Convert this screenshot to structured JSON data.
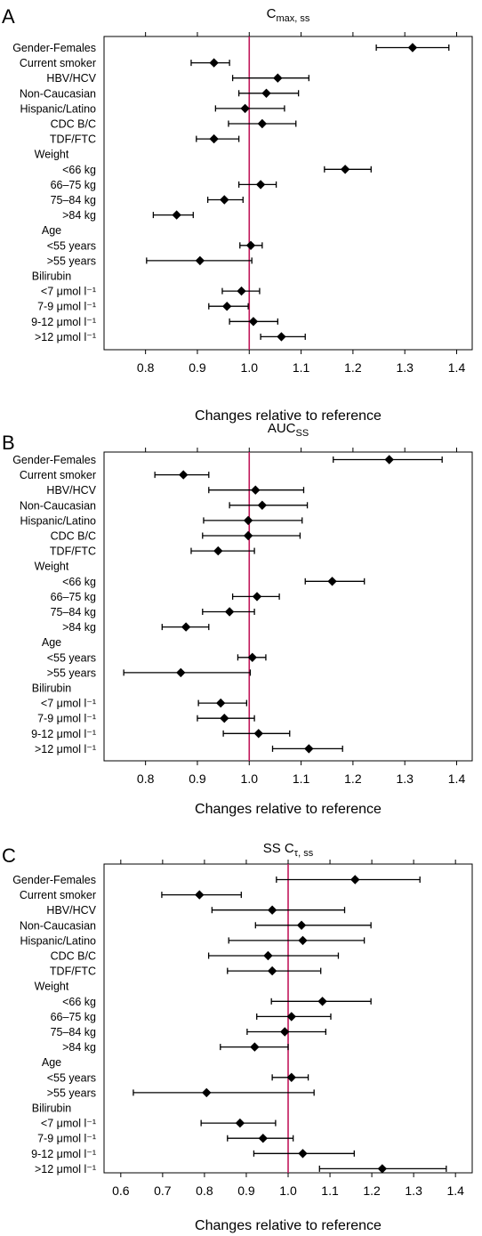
{
  "colors": {
    "reference_line": "#c2185b",
    "markers": "#000000"
  },
  "chart_data": [
    {
      "type": "forest",
      "panel": "A",
      "title_main": "C",
      "title_sub": "max, ss",
      "xlabel": "Changes relative to reference",
      "xlim": [
        0.72,
        1.43
      ],
      "xticks": [
        "0.8",
        "0.9",
        "1.0",
        "1.1",
        "1.2",
        "1.3",
        "1.4"
      ],
      "tick_values": [
        0.8,
        0.9,
        1.0,
        1.1,
        1.2,
        1.3,
        1.4
      ],
      "reference": 1.0,
      "rows": [
        {
          "label": "Gender-Females",
          "est": 1.315,
          "lo": 1.245,
          "hi": 1.385
        },
        {
          "label": "Current smoker",
          "est": 0.932,
          "lo": 0.888,
          "hi": 0.962
        },
        {
          "label": "HBV/HCV",
          "est": 1.055,
          "lo": 0.968,
          "hi": 1.115
        },
        {
          "label": "Non-Caucasian",
          "est": 1.033,
          "lo": 0.98,
          "hi": 1.095
        },
        {
          "label": "Hispanic/Latino",
          "est": 0.992,
          "lo": 0.935,
          "hi": 1.068
        },
        {
          "label": "CDC B/C",
          "est": 1.025,
          "lo": 0.96,
          "hi": 1.09
        },
        {
          "label": "TDF/FTC",
          "est": 0.932,
          "lo": 0.898,
          "hi": 0.98
        },
        {
          "label": "Weight"
        },
        {
          "label": "<66 kg",
          "est": 1.185,
          "lo": 1.145,
          "hi": 1.235
        },
        {
          "label": "66–75 kg",
          "est": 1.022,
          "lo": 0.98,
          "hi": 1.052
        },
        {
          "label": "75–84 kg",
          "est": 0.952,
          "lo": 0.92,
          "hi": 0.988
        },
        {
          "label": ">84 kg",
          "est": 0.86,
          "lo": 0.815,
          "hi": 0.892
        },
        {
          "label": "Age"
        },
        {
          "label": "<55 years",
          "est": 1.003,
          "lo": 0.982,
          "hi": 1.025
        },
        {
          "label": ">55 years",
          "est": 0.905,
          "lo": 0.802,
          "hi": 1.005
        },
        {
          "label": "Bilirubin"
        },
        {
          "label": "<7 μmol l⁻¹",
          "est": 0.985,
          "lo": 0.948,
          "hi": 1.02
        },
        {
          "label": "7-9 μmol l⁻¹",
          "est": 0.957,
          "lo": 0.922,
          "hi": 0.998
        },
        {
          "label": "9-12 μmol l⁻¹",
          "est": 1.008,
          "lo": 0.962,
          "hi": 1.055
        },
        {
          "label": ">12 μmol l⁻¹",
          "est": 1.062,
          "lo": 1.022,
          "hi": 1.108
        }
      ]
    },
    {
      "type": "forest",
      "panel": "B",
      "title_main": "AUC",
      "title_sub": "SS",
      "xlabel": "Changes relative to reference",
      "xlim": [
        0.72,
        1.43
      ],
      "xticks": [
        "0.8",
        "0.9",
        "1.0",
        "1.1",
        "1.2",
        "1.3",
        "1.4"
      ],
      "tick_values": [
        0.8,
        0.9,
        1.0,
        1.1,
        1.2,
        1.3,
        1.4
      ],
      "reference": 1.0,
      "rows": [
        {
          "label": "Gender-Females",
          "est": 1.27,
          "lo": 1.162,
          "hi": 1.372
        },
        {
          "label": "Current smoker",
          "est": 0.873,
          "lo": 0.818,
          "hi": 0.922
        },
        {
          "label": "HBV/HCV",
          "est": 1.012,
          "lo": 0.922,
          "hi": 1.105
        },
        {
          "label": "Non-Caucasian",
          "est": 1.025,
          "lo": 0.962,
          "hi": 1.112
        },
        {
          "label": "Hispanic/Latino",
          "est": 0.998,
          "lo": 0.912,
          "hi": 1.102
        },
        {
          "label": "CDC B/C",
          "est": 0.998,
          "lo": 0.91,
          "hi": 1.098
        },
        {
          "label": "TDF/FTC",
          "est": 0.94,
          "lo": 0.888,
          "hi": 1.01
        },
        {
          "label": "Weight"
        },
        {
          "label": "<66 kg",
          "est": 1.16,
          "lo": 1.108,
          "hi": 1.222
        },
        {
          "label": "66–75 kg",
          "est": 1.015,
          "lo": 0.968,
          "hi": 1.058
        },
        {
          "label": "75–84 kg",
          "est": 0.962,
          "lo": 0.91,
          "hi": 1.01
        },
        {
          "label": ">84 kg",
          "est": 0.878,
          "lo": 0.832,
          "hi": 0.922
        },
        {
          "label": "Age"
        },
        {
          "label": "<55 years",
          "est": 1.006,
          "lo": 0.978,
          "hi": 1.032
        },
        {
          "label": ">55 years",
          "est": 0.868,
          "lo": 0.758,
          "hi": 1.002
        },
        {
          "label": "Bilirubin"
        },
        {
          "label": "<7 μmol l⁻¹",
          "est": 0.945,
          "lo": 0.902,
          "hi": 0.995
        },
        {
          "label": "7-9 μmol l⁻¹",
          "est": 0.952,
          "lo": 0.9,
          "hi": 1.01
        },
        {
          "label": "9-12 μmol l⁻¹",
          "est": 1.018,
          "lo": 0.95,
          "hi": 1.078
        },
        {
          "label": ">12 μmol l⁻¹",
          "est": 1.115,
          "lo": 1.045,
          "hi": 1.18
        }
      ]
    },
    {
      "type": "forest",
      "panel": "C",
      "title_main": "SS C",
      "title_sub": "τ, ss",
      "xlabel": "Changes relative to reference",
      "xlim": [
        0.56,
        1.44
      ],
      "xticks": [
        "0.6",
        "0.7",
        "0.8",
        "0.9",
        "1.0",
        "1.1",
        "1.2",
        "1.3",
        "1.4"
      ],
      "tick_values": [
        0.6,
        0.7,
        0.8,
        0.9,
        1.0,
        1.1,
        1.2,
        1.3,
        1.4
      ],
      "reference": 1.0,
      "rows": [
        {
          "label": "Gender-Females",
          "est": 1.16,
          "lo": 0.972,
          "hi": 1.315
        },
        {
          "label": "Current smoker",
          "est": 0.788,
          "lo": 0.698,
          "hi": 0.888
        },
        {
          "label": "HBV/HCV",
          "est": 0.962,
          "lo": 0.818,
          "hi": 1.135
        },
        {
          "label": "Non-Caucasian",
          "est": 1.032,
          "lo": 0.922,
          "hi": 1.198
        },
        {
          "label": "Hispanic/Latino",
          "est": 1.035,
          "lo": 0.858,
          "hi": 1.182
        },
        {
          "label": "CDC B/C",
          "est": 0.952,
          "lo": 0.81,
          "hi": 1.12
        },
        {
          "label": "TDF/FTC",
          "est": 0.962,
          "lo": 0.855,
          "hi": 1.078
        },
        {
          "label": "Weight"
        },
        {
          "label": "<66 kg",
          "est": 1.082,
          "lo": 0.96,
          "hi": 1.198
        },
        {
          "label": "66–75 kg",
          "est": 1.008,
          "lo": 0.925,
          "hi": 1.102
        },
        {
          "label": "75–84 kg",
          "est": 0.992,
          "lo": 0.902,
          "hi": 1.09
        },
        {
          "label": ">84 kg",
          "est": 0.92,
          "lo": 0.838,
          "hi": 1.0
        },
        {
          "label": "Age"
        },
        {
          "label": "<55 years",
          "est": 1.008,
          "lo": 0.962,
          "hi": 1.048
        },
        {
          "label": ">55 years",
          "est": 0.805,
          "lo": 0.63,
          "hi": 1.062
        },
        {
          "label": "Bilirubin"
        },
        {
          "label": "<7 μmol l⁻¹",
          "est": 0.885,
          "lo": 0.792,
          "hi": 0.97
        },
        {
          "label": "7-9 μmol l⁻¹",
          "est": 0.94,
          "lo": 0.855,
          "hi": 1.012
        },
        {
          "label": "9-12 μmol l⁻¹",
          "est": 1.035,
          "lo": 0.918,
          "hi": 1.158
        },
        {
          "label": ">12 μmol l⁻¹",
          "est": 1.225,
          "lo": 1.075,
          "hi": 1.378
        }
      ]
    }
  ]
}
